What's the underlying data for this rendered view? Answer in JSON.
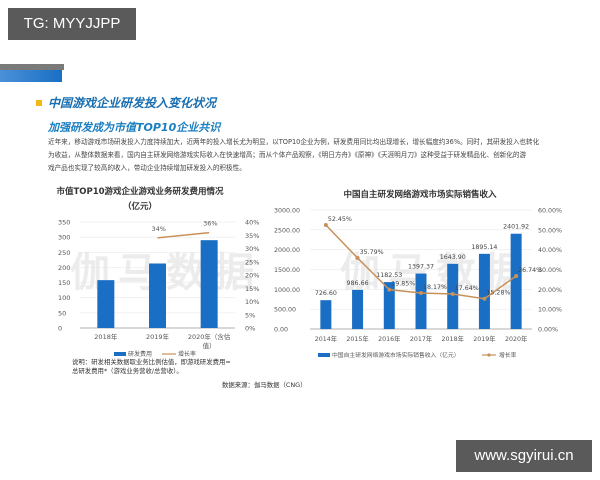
{
  "overlay_tags": {
    "top_left": "TG: MYYJJPP",
    "bottom_right": "www.sgyirui.cn"
  },
  "section": {
    "title": "中国游戏企业研发投入变化状况",
    "subtitle": "加强研发成为市值TOP10企业共识",
    "paragraph_lines": [
      "近年来，移动游戏市场研发投入力度持续加大，近两年的投入增长尤为明显，以TOP10企业为例，研发费用同比均出现增长，增长幅度约36%。同时，其研发投入也转化",
      "为收益，从整体数据来看，国内自主研发网络游戏实际收入在快速增高；而从个体产品观察，《明日方舟》《原神》《天涯明月刀》这种受益于研发精品化、创新化的游",
      "戏产品也实现了较高的收入，带动企业持续增加研发投入的积极性。"
    ]
  },
  "watermark": {
    "left": "伽马数据",
    "right": "伽马数据"
  },
  "note": {
    "line1": "说明：研发相关数据取业务比例估值，即游戏研发费用=",
    "line2": "总研发费用*（游戏业务营收/总营收）。"
  },
  "source": "数据来源：伽马数据（CNG）",
  "colors": {
    "bar": "#1a6fc4",
    "line": "#c8915a",
    "title_blue": "#1a6fb0",
    "bullet": "#f2b817"
  },
  "chart_data": [
    {
      "type": "bar",
      "title": "市值TOP10游戏企业游戏业务研发费用情况（亿元）",
      "title_line1": "市值TOP10游戏企业游戏业务研发费用情况",
      "title_line2": "（亿元）",
      "categories": [
        "2018年",
        "2019年",
        "2020年（含估值）"
      ],
      "category_labels": [
        "2018年",
        "2019年",
        "2020年（含估",
        "值）"
      ],
      "series": [
        {
          "name": "研发费用",
          "type": "bar",
          "axis": "left",
          "values": [
            158,
            213,
            290
          ]
        },
        {
          "name": "增长率",
          "type": "line",
          "axis": "right",
          "values": [
            null,
            34,
            36
          ],
          "labels": [
            "",
            "34%",
            "36%"
          ]
        }
      ],
      "left_axis": {
        "ticks": [
          "0",
          "50",
          "100",
          "150",
          "200",
          "250",
          "300",
          "350"
        ],
        "ylim": [
          0,
          350
        ]
      },
      "right_axis": {
        "ticks": [
          "0%",
          "5%",
          "10%",
          "15%",
          "20%",
          "25%",
          "30%",
          "35%",
          "40%"
        ],
        "ylim": [
          0,
          40
        ]
      },
      "legend": [
        "研发费用",
        "增长率"
      ],
      "legend_position": "bottom",
      "grid": true
    },
    {
      "type": "bar",
      "title": "中国自主研发网络游戏市场实际销售收入",
      "categories": [
        "2014年",
        "2015年",
        "2016年",
        "2017年",
        "2018年",
        "2019年",
        "2020年"
      ],
      "series": [
        {
          "name": "中国自主研发网络游戏市场实际销售收入（亿元）",
          "type": "bar",
          "axis": "left",
          "values": [
            726.6,
            986.66,
            1182.53,
            1397.37,
            1643.9,
            1895.14,
            2401.92
          ],
          "labels": [
            "726.60",
            "986.66",
            "1182.53",
            "1397.37",
            "1643.90",
            "1895.14",
            "2401.92"
          ]
        },
        {
          "name": "增长率",
          "type": "line",
          "axis": "right",
          "values": [
            52.45,
            35.79,
            19.85,
            18.17,
            17.64,
            15.28,
            26.74
          ],
          "labels": [
            "52.45%",
            "35.79%",
            "19.85%",
            "18.17%",
            "17.64%",
            "15.28%",
            "26.74%"
          ]
        }
      ],
      "left_axis": {
        "ticks": [
          "0.00",
          "500.00",
          "1000.00",
          "1500.00",
          "2000.00",
          "2500.00",
          "3000.00"
        ],
        "ylim": [
          0,
          3000
        ]
      },
      "right_axis": {
        "ticks": [
          "0.00%",
          "10.00%",
          "20.00%",
          "30.00%",
          "40.00%",
          "50.00%",
          "60.00%"
        ],
        "ylim": [
          0,
          60
        ]
      },
      "legend": [
        "中国自主研发网络游戏市场实际销售收入（亿元）",
        "增长率"
      ],
      "legend_position": "bottom",
      "grid": true
    }
  ]
}
